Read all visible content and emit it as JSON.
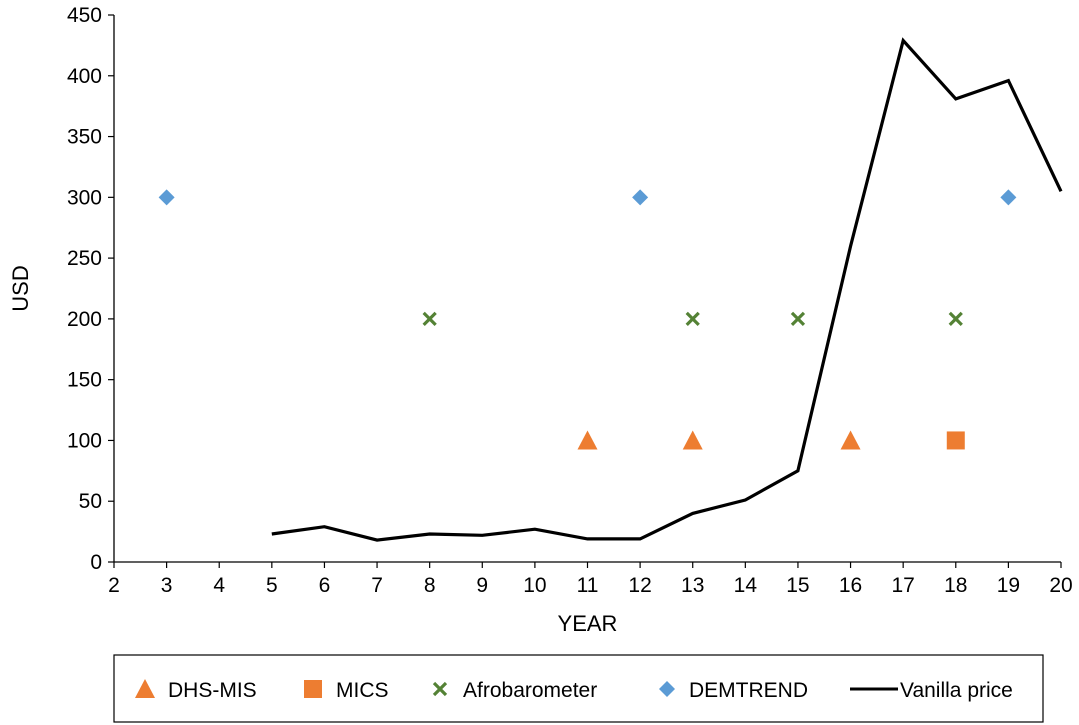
{
  "chart_data": {
    "type": "scatter",
    "xlabel": "YEAR",
    "ylabel": "USD",
    "xlim": [
      2,
      20
    ],
    "ylim": [
      0,
      450
    ],
    "x_ticks": [
      2,
      3,
      4,
      5,
      6,
      7,
      8,
      9,
      10,
      11,
      12,
      13,
      14,
      15,
      16,
      17,
      18,
      19,
      20
    ],
    "y_ticks": [
      0,
      50,
      100,
      150,
      200,
      250,
      300,
      350,
      400,
      450
    ],
    "grid": false,
    "legend_position": "bottom",
    "series": [
      {
        "name": "DHS-MIS",
        "kind": "scatter",
        "marker": "triangle",
        "color": "#ED7D31",
        "points": [
          {
            "x": 11,
            "y": 100
          },
          {
            "x": 13,
            "y": 100
          },
          {
            "x": 16,
            "y": 100
          }
        ]
      },
      {
        "name": "MICS",
        "kind": "scatter",
        "marker": "square",
        "color": "#ED7D31",
        "points": [
          {
            "x": 18,
            "y": 100
          }
        ]
      },
      {
        "name": "Afrobarometer",
        "kind": "scatter",
        "marker": "x",
        "color": "#548235",
        "points": [
          {
            "x": 8,
            "y": 200
          },
          {
            "x": 13,
            "y": 200
          },
          {
            "x": 15,
            "y": 200
          },
          {
            "x": 18,
            "y": 200
          }
        ]
      },
      {
        "name": "DEMTREND",
        "kind": "scatter",
        "marker": "diamond",
        "color": "#5B9BD5",
        "points": [
          {
            "x": 3,
            "y": 300
          },
          {
            "x": 12,
            "y": 300
          },
          {
            "x": 19,
            "y": 300
          }
        ]
      },
      {
        "name": "Vanilla price",
        "kind": "line",
        "marker": "line",
        "color": "#000000",
        "points": [
          {
            "x": 5,
            "y": 23
          },
          {
            "x": 6,
            "y": 29
          },
          {
            "x": 7,
            "y": 18
          },
          {
            "x": 8,
            "y": 23
          },
          {
            "x": 9,
            "y": 22
          },
          {
            "x": 10,
            "y": 27
          },
          {
            "x": 11,
            "y": 19
          },
          {
            "x": 12,
            "y": 19
          },
          {
            "x": 13,
            "y": 40
          },
          {
            "x": 14,
            "y": 51
          },
          {
            "x": 15,
            "y": 75
          },
          {
            "x": 16,
            "y": 260
          },
          {
            "x": 17,
            "y": 429
          },
          {
            "x": 18,
            "y": 381
          },
          {
            "x": 19,
            "y": 396
          },
          {
            "x": 20,
            "y": 305
          }
        ]
      }
    ]
  }
}
